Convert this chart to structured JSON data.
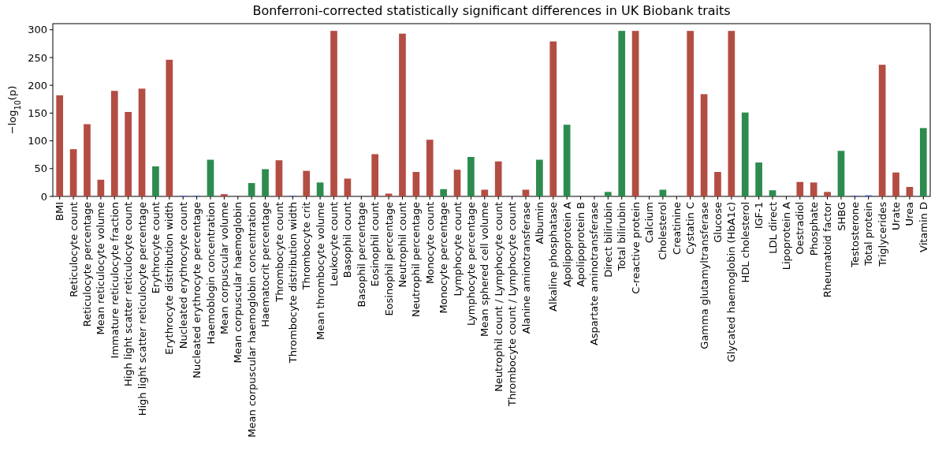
{
  "chart_data": {
    "type": "bar",
    "title": "Bonferroni-corrected statistically significant differences in UK Biobank traits",
    "ylabel": "−log$_{10}$(p)",
    "categories": [
      "BMI",
      "Reticulocyte count",
      "Reticulocyte percentage",
      "Mean reticulocyte volume",
      "Immature reticulocyte fraction",
      "High light scatter reticulocyte count",
      "High light scatter reticulocyte percentage",
      "Erythrocyte count",
      "Erythrocyte distribution width",
      "Nucleated erythrocyte count",
      "Nucleated erythrocyte percentage",
      "Haemoblogin concentration",
      "Mean corpuscular volume",
      "Mean corpuscular haemoglobin",
      "Mean corpuscular haemoglobin concentration",
      "Haematocrit percentage",
      "Thrombocyte count",
      "Thrombocyte distribution width",
      "Thrombocyte crit",
      "Mean thrombocyte volume",
      "Leukocyte count",
      "Basophil count",
      "Basophil percentage",
      "Eosinophil count",
      "Eosinophil percentage",
      "Neutrophil count",
      "Neutrophil percentage",
      "Monocyte count",
      "Monocyte percentage",
      "Lymphocyte count",
      "Lymphocyte percentage",
      "Mean sphered cell volume",
      "Neutrophil count / Lymphocyte count",
      "Thrombocyte count / Lymphocyte count",
      "Alanine aminotransferase",
      "Albumin",
      "Alkaline phosphatase",
      "Apolipoprotein A",
      "Apolipoprotein B",
      "Aspartate aminotransferase",
      "Direct bilirubin",
      "Total bilirubin",
      "C-reactive protein",
      "Calcium",
      "Cholesterol",
      "Creatinine",
      "Cystatin C",
      "Gamma glutamyltransferase",
      "Glucose",
      "Glycated haemoglobin (HbA1c)",
      "HDL cholesterol",
      "IGF-1",
      "LDL direct",
      "Lipoprotein A",
      "Oestradiol",
      "Phosphate",
      "Rheumatoid factor",
      "SHBG",
      "Testosterone",
      "Total protein",
      "Triglycerides",
      "Urate",
      "Urea",
      "Vitamin D"
    ],
    "values": [
      182,
      85,
      130,
      30,
      190,
      152,
      194,
      54,
      246,
      1,
      1,
      66,
      4,
      0,
      24,
      49,
      65,
      1,
      46,
      25,
      298,
      32,
      0,
      76,
      5,
      293,
      44,
      102,
      13,
      48,
      71,
      12,
      63,
      0,
      12,
      66,
      279,
      129,
      0,
      0,
      8,
      298,
      298,
      0,
      12,
      0,
      298,
      184,
      44,
      298,
      151,
      61,
      11,
      0,
      26,
      25,
      8,
      82,
      1,
      2,
      237,
      43,
      17,
      123
    ],
    "colors": [
      "#b34d43",
      "#b34d43",
      "#b34d43",
      "#b34d43",
      "#b34d43",
      "#b34d43",
      "#b34d43",
      "#2e8b4f",
      "#b34d43",
      "#4a5ed0",
      "#4a5ed0",
      "#2e8b4f",
      "#b34d43",
      "#b34d43",
      "#2e8b4f",
      "#2e8b4f",
      "#b34d43",
      "#4a5ed0",
      "#b34d43",
      "#2e8b4f",
      "#b34d43",
      "#b34d43",
      "#b34d43",
      "#b34d43",
      "#b34d43",
      "#b34d43",
      "#b34d43",
      "#b34d43",
      "#2e8b4f",
      "#b34d43",
      "#2e8b4f",
      "#b34d43",
      "#b34d43",
      "#b34d43",
      "#b34d43",
      "#2e8b4f",
      "#b34d43",
      "#2e8b4f",
      "#b34d43",
      "#b34d43",
      "#2e8b4f",
      "#2e8b4f",
      "#b34d43",
      "#b34d43",
      "#2e8b4f",
      "#b34d43",
      "#b34d43",
      "#b34d43",
      "#b34d43",
      "#b34d43",
      "#2e8b4f",
      "#2e8b4f",
      "#2e8b4f",
      "#b34d43",
      "#b34d43",
      "#b34d43",
      "#b34d43",
      "#2e8b4f",
      "#4a5ed0",
      "#4a5ed0",
      "#b34d43",
      "#b34d43",
      "#b34d43",
      "#2e8b4f"
    ],
    "ylim": [
      0,
      311
    ],
    "yticks": [
      0,
      50,
      100,
      150,
      200,
      250,
      300
    ],
    "grid": false
  }
}
